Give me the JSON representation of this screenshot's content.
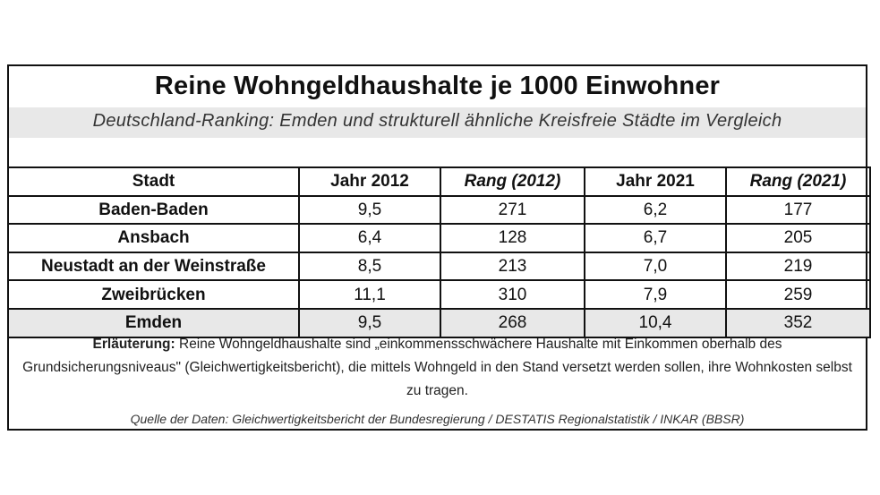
{
  "title": "Reine Wohngeldhaushalte je 1000 Einwohner",
  "subtitle": "Deutschland-Ranking: Emden und strukturell ähnliche Kreisfreie Städte im Vergleich",
  "table": {
    "headers": [
      "Stadt",
      "Jahr 2012",
      "Rang (2012)",
      "Jahr 2021",
      "Rang (2021)"
    ],
    "rows": [
      [
        "Baden-Baden",
        "9,5",
        "271",
        "6,2",
        "177"
      ],
      [
        "Ansbach",
        "6,4",
        "128",
        "6,7",
        "205"
      ],
      [
        "Neustadt an der Weinstraße",
        "8,5",
        "213",
        "7,0",
        "219"
      ],
      [
        "Zweibrücken",
        "11,1",
        "310",
        "7,9",
        "259"
      ],
      [
        "Emden",
        "9,5",
        "268",
        "10,4",
        "352"
      ]
    ]
  },
  "note": {
    "label": "Erläuterung:",
    "text": " Reine Wohngeldhaushalte sind „einkommensschwächere Haushalte mit Einkommen oberhalb des Grundsicherungsniveaus\"  (Gleichwertigkeitsbericht), die mittels Wohngeld in den Stand versetzt werden sollen, ihre Wohnkosten selbst zu tragen."
  },
  "source": "Quelle der Daten: Gleichwertigkeitsbericht der Bundesregierung / DESTATIS Regionalstatistik / INKAR (BBSR)",
  "colors": {
    "band": "#e8e8e8",
    "border": "#111111"
  }
}
